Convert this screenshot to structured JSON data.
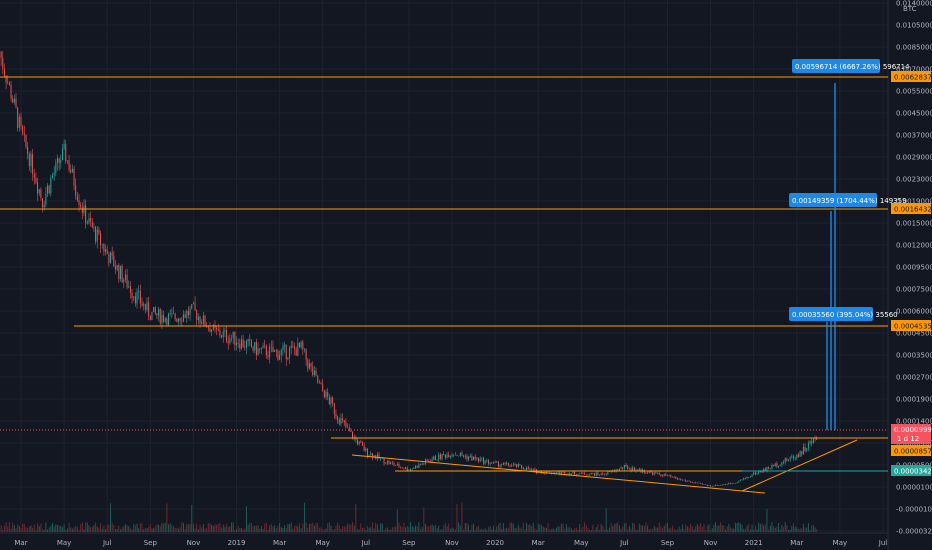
{
  "chart_data": {
    "type": "candlestick",
    "quote_unit": "BTC",
    "y_axis_ticks": [
      "0.01400000",
      "0.01050000",
      "0.00850000",
      "0.00700000",
      "0.00550000",
      "0.00450000",
      "0.00370000",
      "0.00290000",
      "0.00230000",
      "0.00190000",
      "0.00150000",
      "0.00120000",
      "0.00095000",
      "0.00075000",
      "0.00060000",
      "0.00045000",
      "0.00035000",
      "0.00027000",
      "0.00019000",
      "0.00014000",
      "0.00009000",
      "0.00005000",
      "0.00001000",
      "-0.00001000",
      "-0.00003200"
    ],
    "x_axis_ticks": [
      "Mar",
      "May",
      "Jul",
      "Sep",
      "Nov",
      "2019",
      "Mar",
      "May",
      "Jul",
      "Sep",
      "Nov",
      "2020",
      "Mar",
      "May",
      "Jul",
      "Sep",
      "Nov",
      "2021",
      "Mar",
      "May",
      "Jul"
    ],
    "horizontal_levels": [
      {
        "price": "0.00628374",
        "color": "#ff9800"
      },
      {
        "price": "0.00164324",
        "color": "#ff9800"
      },
      {
        "price": "0.00045359",
        "color": "#ff9800"
      },
      {
        "price": "0.00008574",
        "color": "#ff9800"
      }
    ],
    "measurements": [
      {
        "label": "0.00596714 (6667.26%) 596714",
        "color": "#1e88e5"
      },
      {
        "label": "0.00149359 (1704.44%) 149359",
        "color": "#1e88e5"
      },
      {
        "label": "0.00035560 (395.04%) 35560",
        "color": "#1e88e5"
      }
    ],
    "current_price": {
      "value": "0.00009990",
      "countdown": "1 d 12",
      "color": "#f7525f"
    },
    "green_level": {
      "value": "0.00003422",
      "color": "#26a69a"
    },
    "price_series": [
      [
        "2018-02",
        0.0082
      ],
      [
        "2018-03",
        0.0038
      ],
      [
        "2018-04",
        0.0019
      ],
      [
        "2018-05",
        0.0031
      ],
      [
        "2018-06",
        0.0016
      ],
      [
        "2018-07",
        0.0011
      ],
      [
        "2018-08",
        0.00078
      ],
      [
        "2018-09",
        0.00058
      ],
      [
        "2018-10",
        0.00055
      ],
      [
        "2018-11",
        0.0006
      ],
      [
        "2018-12",
        0.00046
      ],
      [
        "2019-01",
        0.00042
      ],
      [
        "2019-02",
        0.00037
      ],
      [
        "2019-03",
        0.00036
      ],
      [
        "2019-04",
        0.00038
      ],
      [
        "2019-05",
        0.00022
      ],
      [
        "2019-06",
        0.00013
      ],
      [
        "2019-07",
        7.5e-05
      ],
      [
        "2019-08",
        5.5e-05
      ],
      [
        "2019-09",
        4.2e-05
      ],
      [
        "2019-10",
        6e-05
      ],
      [
        "2019-11",
        7.2e-05
      ],
      [
        "2019-12",
        6.2e-05
      ],
      [
        "2020-01",
        5.2e-05
      ],
      [
        "2020-02",
        4.8e-05
      ],
      [
        "2020-03",
        3.8e-05
      ],
      [
        "2020-04",
        3.6e-05
      ],
      [
        "2020-05",
        3.4e-05
      ],
      [
        "2020-06",
        3.3e-05
      ],
      [
        "2020-07",
        4.6e-05
      ],
      [
        "2020-08",
        3.8e-05
      ],
      [
        "2020-09",
        3e-05
      ],
      [
        "2020-10",
        2e-05
      ],
      [
        "2020-11",
        1.2e-05
      ],
      [
        "2020-12",
        1.7e-05
      ],
      [
        "2021-01",
        3.4e-05
      ],
      [
        "2021-02",
        5e-05
      ],
      [
        "2021-03",
        6.8e-05
      ],
      [
        "2021-04",
        0.000105
      ]
    ]
  }
}
